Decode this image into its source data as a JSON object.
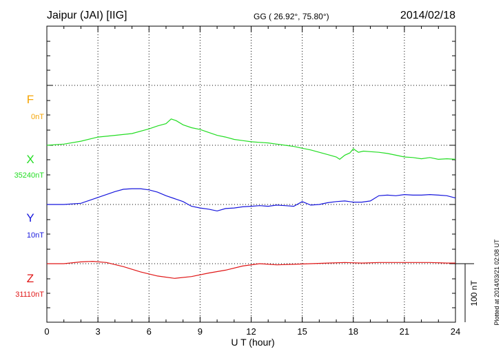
{
  "header": {
    "station": "Jaipur (JAI)  [IIG]",
    "coords": "GG ( 26.92°,  75.80°)",
    "date": "2014/02/18"
  },
  "side_note": "Plotted at 2014/03/21 02:08 UT",
  "chart_data": {
    "type": "line",
    "xlabel": "U T (hour)",
    "xlim": [
      0,
      24
    ],
    "x_ticks": [
      "0",
      "3",
      "6",
      "9",
      "12",
      "15",
      "18",
      "21",
      "24"
    ],
    "scale_bar_label": "100 nT",
    "scale_bar_nT": 100,
    "grid": true,
    "series": [
      {
        "name": "F",
        "baseline_label": "0nT",
        "color": "#f5a300",
        "x": [],
        "values": []
      },
      {
        "name": "X",
        "baseline_label": "35240nT",
        "color": "#22dd22",
        "x": [
          0,
          1,
          2,
          3,
          4,
          5,
          6,
          6.5,
          7,
          7.3,
          7.6,
          8,
          8.5,
          9,
          9.5,
          10,
          10.5,
          11,
          11.5,
          12,
          12.5,
          13,
          13.5,
          14,
          14.5,
          15,
          15.5,
          16,
          16.5,
          17,
          17.2,
          17.5,
          17.8,
          18,
          18.3,
          18.6,
          19,
          19.5,
          20,
          20.5,
          21,
          21.5,
          22,
          22.5,
          23,
          23.5,
          24
        ],
        "values": [
          0,
          2,
          7,
          14,
          17,
          20,
          28,
          33,
          37,
          45,
          42,
          35,
          30,
          27,
          22,
          17,
          14,
          10,
          8,
          6,
          5,
          4,
          2,
          0,
          -2,
          -5,
          -8,
          -12,
          -16,
          -20,
          -24,
          -17,
          -13,
          -6,
          -12,
          -10,
          -11,
          -12,
          -14,
          -17,
          -20,
          -21,
          -23,
          -21,
          -24,
          -23,
          -24
        ]
      },
      {
        "name": "Y",
        "baseline_label": "10nT",
        "color": "#1515dd",
        "x": [
          0,
          1,
          2,
          3,
          4,
          4.5,
          5,
          5.5,
          6,
          6.5,
          7,
          7.5,
          8,
          8.5,
          9,
          9.5,
          10,
          10.5,
          11,
          11.5,
          12,
          12.5,
          13,
          13.5,
          14,
          14.5,
          15,
          15.5,
          16,
          16.5,
          17,
          17.5,
          18,
          18.5,
          19,
          19.5,
          20,
          20.5,
          21,
          21.5,
          22,
          22.5,
          23,
          23.5,
          24
        ],
        "values": [
          0,
          0,
          2,
          12,
          22,
          26,
          27,
          27,
          25,
          21,
          15,
          10,
          5,
          -3,
          -6,
          -8,
          -11,
          -7,
          -6,
          -4,
          -3,
          -2,
          -3,
          -1,
          -2,
          -3,
          5,
          -1,
          0,
          3,
          5,
          6,
          4,
          4,
          6,
          15,
          16,
          15,
          17,
          16,
          16,
          17,
          16,
          15,
          11
        ]
      },
      {
        "name": "Z",
        "baseline_label": "31110nT",
        "color": "#e01515",
        "x": [
          0,
          1,
          2,
          2.7,
          3.5,
          4.5,
          5.5,
          6.5,
          7.5,
          8.5,
          9.5,
          10.5,
          11.5,
          12.5,
          13.5,
          14.5,
          15.5,
          16.5,
          17.5,
          18.5,
          19.5,
          20.5,
          21.5,
          22.5,
          23.5,
          24
        ],
        "values": [
          0,
          0,
          3,
          4,
          2,
          -5,
          -14,
          -21,
          -25,
          -22,
          -16,
          -11,
          -4,
          0,
          -2,
          -1,
          0,
          1,
          2,
          1,
          2,
          2,
          2,
          2,
          1,
          1
        ]
      }
    ]
  }
}
